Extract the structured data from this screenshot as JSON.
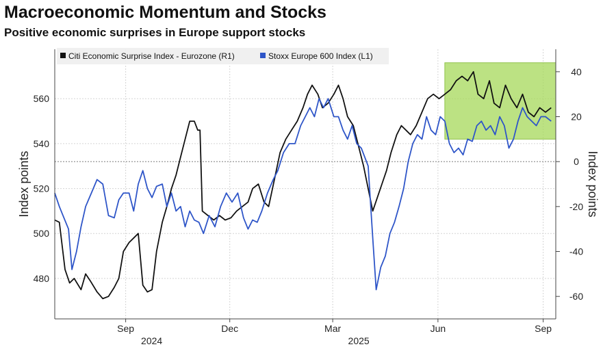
{
  "chart_data": {
    "type": "line",
    "title": "Macroeconomic Momentum and Stocks",
    "subtitle": "Positive economic surprises in Europe support stocks",
    "ylabel_left": "Index points",
    "ylabel_right": "Index points",
    "ylim_left": [
      462,
      582
    ],
    "ylim_right": [
      -70,
      50
    ],
    "yticks_left": [
      480,
      500,
      520,
      540,
      560
    ],
    "yticks_right": [
      -60,
      -40,
      -20,
      0,
      20,
      40
    ],
    "x_ticks": [
      {
        "label": "Sep",
        "year": "2024",
        "x": "2024-09-01"
      },
      {
        "label": "Dec",
        "year": "",
        "x": "2024-12-01"
      },
      {
        "label": "Mar",
        "year": "2025",
        "x": "2025-03-01"
      },
      {
        "label": "Jun",
        "year": "",
        "x": "2025-06-01"
      },
      {
        "label": "Sep",
        "year": "",
        "x": "2025-09-01"
      }
    ],
    "xlim": [
      "2024-07-01",
      "2025-09-12"
    ],
    "grid": true,
    "legend_position": "top-left",
    "highlight_region": {
      "x": [
        "2025-06-07",
        "2025-09-12"
      ],
      "y_right": [
        10,
        44
      ],
      "color": "#a6d85a"
    },
    "series": [
      {
        "name": "Citi Economic Surprise Index - Eurozone (R1)",
        "axis": "right",
        "color": "#111111",
        "points": [
          [
            "2024-07-01",
            -26
          ],
          [
            "2024-07-05",
            -27
          ],
          [
            "2024-07-10",
            -48
          ],
          [
            "2024-07-14",
            -54
          ],
          [
            "2024-07-18",
            -52
          ],
          [
            "2024-07-24",
            -57
          ],
          [
            "2024-07-28",
            -50
          ],
          [
            "2024-08-01",
            -53
          ],
          [
            "2024-08-07",
            -58
          ],
          [
            "2024-08-12",
            -61
          ],
          [
            "2024-08-17",
            -60
          ],
          [
            "2024-08-22",
            -56
          ],
          [
            "2024-08-26",
            -52
          ],
          [
            "2024-08-30",
            -40
          ],
          [
            "2024-09-04",
            -36
          ],
          [
            "2024-09-08",
            -34
          ],
          [
            "2024-09-12",
            -32
          ],
          [
            "2024-09-16",
            -55
          ],
          [
            "2024-09-20",
            -58
          ],
          [
            "2024-09-24",
            -57
          ],
          [
            "2024-09-28",
            -40
          ],
          [
            "2024-10-03",
            -27
          ],
          [
            "2024-10-07",
            -20
          ],
          [
            "2024-10-11",
            -12
          ],
          [
            "2024-10-15",
            -6
          ],
          [
            "2024-10-19",
            2
          ],
          [
            "2024-10-23",
            10
          ],
          [
            "2024-10-27",
            18
          ],
          [
            "2024-10-31",
            18
          ],
          [
            "2024-11-03",
            14
          ],
          [
            "2024-11-05",
            14
          ],
          [
            "2024-11-07",
            -22
          ],
          [
            "2024-11-12",
            -24
          ],
          [
            "2024-11-17",
            -26
          ],
          [
            "2024-11-22",
            -24
          ],
          [
            "2024-11-27",
            -26
          ],
          [
            "2024-12-02",
            -25
          ],
          [
            "2024-12-07",
            -22
          ],
          [
            "2024-12-12",
            -20
          ],
          [
            "2024-12-17",
            -18
          ],
          [
            "2024-12-21",
            -12
          ],
          [
            "2024-12-26",
            -10
          ],
          [
            "2024-12-31",
            -18
          ],
          [
            "2025-01-04",
            -20
          ],
          [
            "2025-01-09",
            -8
          ],
          [
            "2025-01-14",
            4
          ],
          [
            "2025-01-19",
            10
          ],
          [
            "2025-01-24",
            14
          ],
          [
            "2025-01-29",
            18
          ],
          [
            "2025-02-03",
            24
          ],
          [
            "2025-02-07",
            30
          ],
          [
            "2025-02-11",
            34
          ],
          [
            "2025-02-16",
            30
          ],
          [
            "2025-02-20",
            24
          ],
          [
            "2025-02-25",
            26
          ],
          [
            "2025-03-02",
            30
          ],
          [
            "2025-03-06",
            34
          ],
          [
            "2025-03-10",
            28
          ],
          [
            "2025-03-14",
            20
          ],
          [
            "2025-03-19",
            16
          ],
          [
            "2025-03-23",
            8
          ],
          [
            "2025-03-28",
            -2
          ],
          [
            "2025-04-01",
            -12
          ],
          [
            "2025-04-05",
            -22
          ],
          [
            "2025-04-09",
            -16
          ],
          [
            "2025-04-13",
            -10
          ],
          [
            "2025-04-17",
            -4
          ],
          [
            "2025-04-21",
            4
          ],
          [
            "2025-04-26",
            12
          ],
          [
            "2025-04-30",
            16
          ],
          [
            "2025-05-04",
            14
          ],
          [
            "2025-05-08",
            12
          ],
          [
            "2025-05-13",
            16
          ],
          [
            "2025-05-18",
            22
          ],
          [
            "2025-05-23",
            28
          ],
          [
            "2025-05-28",
            30
          ],
          [
            "2025-06-02",
            28
          ],
          [
            "2025-06-07",
            30
          ],
          [
            "2025-06-12",
            32
          ],
          [
            "2025-06-17",
            36
          ],
          [
            "2025-06-22",
            38
          ],
          [
            "2025-06-27",
            36
          ],
          [
            "2025-07-02",
            40
          ],
          [
            "2025-07-06",
            30
          ],
          [
            "2025-07-11",
            28
          ],
          [
            "2025-07-16",
            36
          ],
          [
            "2025-07-20",
            26
          ],
          [
            "2025-07-25",
            24
          ],
          [
            "2025-07-30",
            34
          ],
          [
            "2025-08-04",
            28
          ],
          [
            "2025-08-09",
            24
          ],
          [
            "2025-08-14",
            30
          ],
          [
            "2025-08-19",
            22
          ],
          [
            "2025-08-24",
            20
          ],
          [
            "2025-08-29",
            24
          ],
          [
            "2025-09-03",
            22
          ],
          [
            "2025-09-08",
            24
          ]
        ]
      },
      {
        "name": "Stoxx Europe 600 Index (L1)",
        "axis": "left",
        "color": "#2e55c8",
        "points": [
          [
            "2024-07-01",
            518
          ],
          [
            "2024-07-05",
            512
          ],
          [
            "2024-07-09",
            507
          ],
          [
            "2024-07-13",
            502
          ],
          [
            "2024-07-16",
            484
          ],
          [
            "2024-07-20",
            492
          ],
          [
            "2024-07-24",
            503
          ],
          [
            "2024-07-28",
            512
          ],
          [
            "2024-08-02",
            518
          ],
          [
            "2024-08-07",
            524
          ],
          [
            "2024-08-12",
            522
          ],
          [
            "2024-08-17",
            508
          ],
          [
            "2024-08-22",
            507
          ],
          [
            "2024-08-26",
            515
          ],
          [
            "2024-08-30",
            518
          ],
          [
            "2024-09-04",
            518
          ],
          [
            "2024-09-08",
            510
          ],
          [
            "2024-09-12",
            522
          ],
          [
            "2024-09-16",
            528
          ],
          [
            "2024-09-20",
            520
          ],
          [
            "2024-09-24",
            516
          ],
          [
            "2024-09-28",
            521
          ],
          [
            "2024-10-03",
            522
          ],
          [
            "2024-10-07",
            512
          ],
          [
            "2024-10-11",
            518
          ],
          [
            "2024-10-15",
            510
          ],
          [
            "2024-10-19",
            512
          ],
          [
            "2024-10-23",
            503
          ],
          [
            "2024-10-27",
            510
          ],
          [
            "2024-10-31",
            506
          ],
          [
            "2024-11-04",
            505
          ],
          [
            "2024-11-08",
            500
          ],
          [
            "2024-11-13",
            508
          ],
          [
            "2024-11-18",
            503
          ],
          [
            "2024-11-23",
            512
          ],
          [
            "2024-11-28",
            518
          ],
          [
            "2024-12-03",
            514
          ],
          [
            "2024-12-08",
            518
          ],
          [
            "2024-12-13",
            507
          ],
          [
            "2024-12-17",
            502
          ],
          [
            "2024-12-21",
            506
          ],
          [
            "2024-12-25",
            505
          ],
          [
            "2024-12-29",
            510
          ],
          [
            "2025-01-03",
            518
          ],
          [
            "2025-01-08",
            524
          ],
          [
            "2025-01-12",
            528
          ],
          [
            "2025-01-17",
            536
          ],
          [
            "2025-01-22",
            540
          ],
          [
            "2025-01-27",
            540
          ],
          [
            "2025-02-01",
            548
          ],
          [
            "2025-02-05",
            552
          ],
          [
            "2025-02-09",
            556
          ],
          [
            "2025-02-13",
            552
          ],
          [
            "2025-02-17",
            560
          ],
          [
            "2025-02-21",
            556
          ],
          [
            "2025-02-25",
            560
          ],
          [
            "2025-03-02",
            552
          ],
          [
            "2025-03-06",
            552
          ],
          [
            "2025-03-10",
            546
          ],
          [
            "2025-03-14",
            542
          ],
          [
            "2025-03-18",
            548
          ],
          [
            "2025-03-22",
            540
          ],
          [
            "2025-03-26",
            538
          ],
          [
            "2025-04-01",
            530
          ],
          [
            "2025-04-05",
            498
          ],
          [
            "2025-04-08",
            475
          ],
          [
            "2025-04-12",
            485
          ],
          [
            "2025-04-16",
            490
          ],
          [
            "2025-04-20",
            500
          ],
          [
            "2025-04-24",
            505
          ],
          [
            "2025-04-28",
            512
          ],
          [
            "2025-05-02",
            520
          ],
          [
            "2025-05-06",
            532
          ],
          [
            "2025-05-10",
            540
          ],
          [
            "2025-05-14",
            544
          ],
          [
            "2025-05-18",
            542
          ],
          [
            "2025-05-22",
            552
          ],
          [
            "2025-05-26",
            546
          ],
          [
            "2025-05-30",
            544
          ],
          [
            "2025-06-03",
            552
          ],
          [
            "2025-06-07",
            550
          ],
          [
            "2025-06-11",
            540
          ],
          [
            "2025-06-15",
            536
          ],
          [
            "2025-06-19",
            538
          ],
          [
            "2025-06-23",
            535
          ],
          [
            "2025-06-27",
            542
          ],
          [
            "2025-07-01",
            541
          ],
          [
            "2025-07-05",
            548
          ],
          [
            "2025-07-09",
            550
          ],
          [
            "2025-07-13",
            546
          ],
          [
            "2025-07-17",
            548
          ],
          [
            "2025-07-21",
            544
          ],
          [
            "2025-07-25",
            552
          ],
          [
            "2025-07-29",
            548
          ],
          [
            "2025-08-02",
            538
          ],
          [
            "2025-08-06",
            542
          ],
          [
            "2025-08-10",
            550
          ],
          [
            "2025-08-14",
            556
          ],
          [
            "2025-08-18",
            552
          ],
          [
            "2025-08-22",
            550
          ],
          [
            "2025-08-26",
            548
          ],
          [
            "2025-08-30",
            552
          ],
          [
            "2025-09-03",
            552
          ],
          [
            "2025-09-08",
            550
          ]
        ]
      }
    ]
  }
}
